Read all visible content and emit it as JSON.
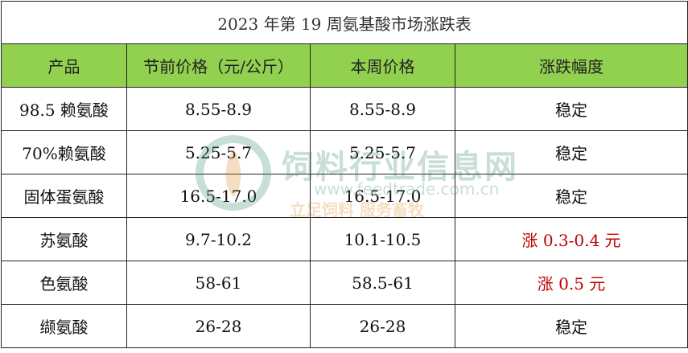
{
  "table": {
    "title": "2023 年第 19 周氨基酸市场涨跌表",
    "header": [
      "产品",
      "节前价格（元/公斤）",
      "本周价格",
      "涨跌幅度"
    ],
    "rows": [
      [
        "98.5 赖氨酸",
        "8.55-8.9",
        "8.55-8.9",
        "稳定"
      ],
      [
        "70%赖氨酸",
        "5.25-5.7",
        "5.25-5.7",
        "稳定"
      ],
      [
        "固体蛋氨酸",
        "16.5-17.0",
        "16.5-17.0",
        "稳定"
      ],
      [
        "苏氨酸",
        "9.7-10.2",
        "10.1-10.5",
        "涨 0.3-0.4 元"
      ],
      [
        "色氨酸",
        "58-61",
        "58.5-61",
        "涨 0.5 元"
      ],
      [
        "缬氨酸",
        "26-28",
        "26-28",
        "稳定"
      ]
    ]
  },
  "watermark": {
    "name": "饲料行业信息网",
    "url": "www.feedtrade.com.cn",
    "slogan": "立足饲料 服务畜牧"
  }
}
